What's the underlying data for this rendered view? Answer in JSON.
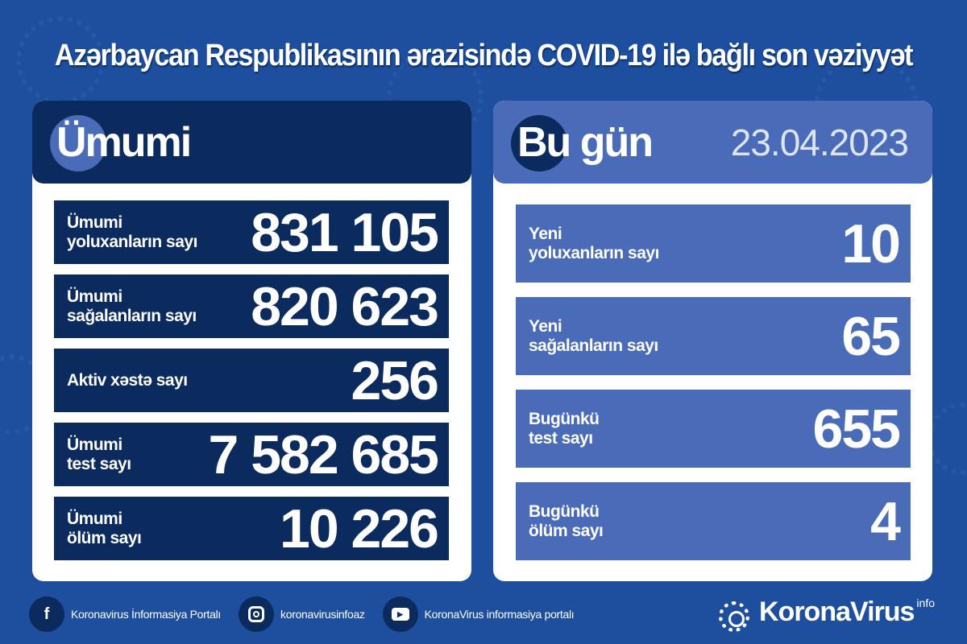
{
  "title": "Azərbaycan Respublikasının ərazisində COVID-19 ilə bağlı son vəziyyət",
  "total": {
    "heading": "Ümumi",
    "rows": [
      {
        "label1": "Ümumi",
        "label2": "yoluxanların sayı",
        "value": "831 105"
      },
      {
        "label1": "Ümumi",
        "label2": "sağalanların sayı",
        "value": "820 623"
      },
      {
        "label1": "Aktiv xəstə sayı",
        "label2": "",
        "value": "256"
      },
      {
        "label1": "Ümumi",
        "label2": "test sayı",
        "value": "7 582 685"
      },
      {
        "label1": "Ümumi",
        "label2": "ölüm sayı",
        "value": "10 226"
      }
    ]
  },
  "today": {
    "heading": "Bu gün",
    "date": "23.04.2023",
    "rows": [
      {
        "label1": "Yeni",
        "label2": "yoluxanların sayı",
        "value": "10"
      },
      {
        "label1": "Yeni",
        "label2": "sağalanların sayı",
        "value": "65"
      },
      {
        "label1": "Bugünkü",
        "label2": "test sayı",
        "value": "655"
      },
      {
        "label1": "Bugünkü",
        "label2": "ölüm sayı",
        "value": "4"
      }
    ]
  },
  "footer": {
    "facebook": "Koronavirus İnformasiya Portalı",
    "instagram": "koronavirusinfoaz",
    "youtube": "KoronaVirus informasiya portalı",
    "brand": "KoronaVirus",
    "brand_sup": "info"
  },
  "colors": {
    "background": "#1d4f9e",
    "navy": "#0b2a5e",
    "accent": "#4a6cb8"
  }
}
